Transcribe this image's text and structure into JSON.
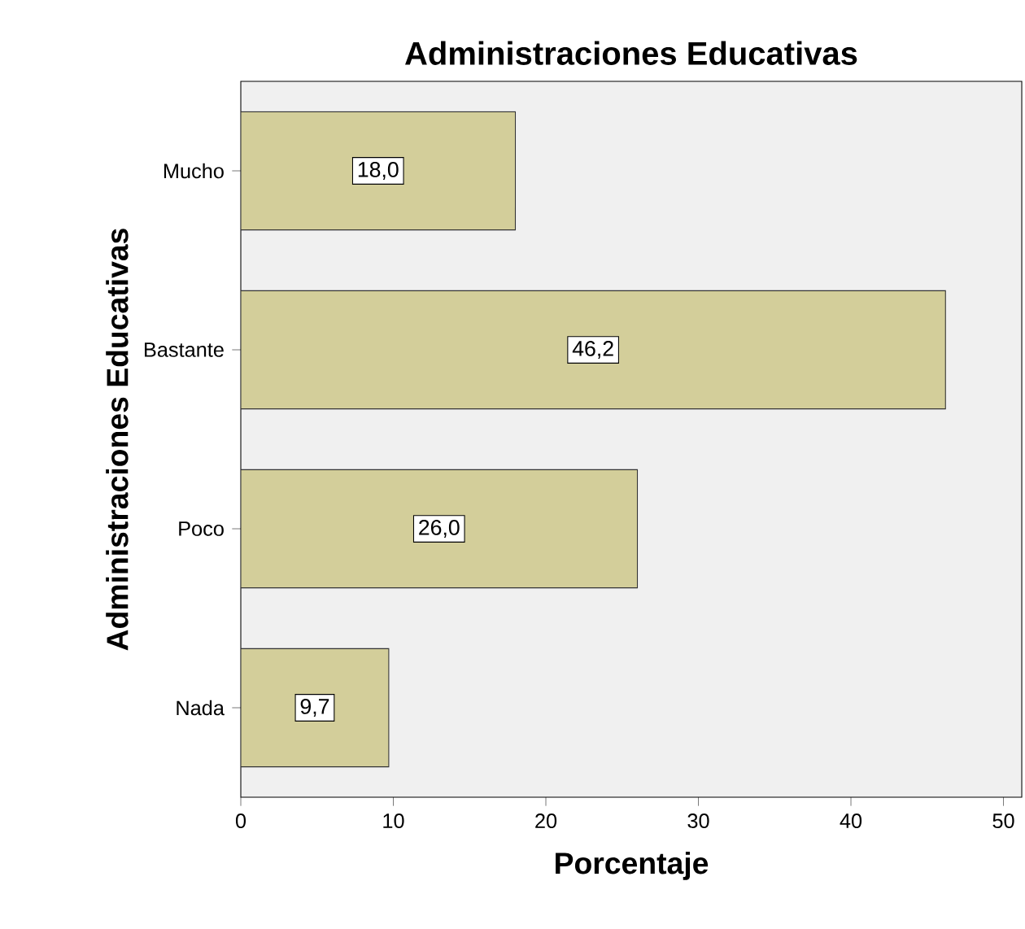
{
  "chart_data": {
    "type": "bar",
    "orientation": "horizontal",
    "title": "Administraciones Educativas",
    "xlabel": "Porcentaje",
    "ylabel": "Administraciones Educativas",
    "categories": [
      "Mucho",
      "Bastante",
      "Poco",
      "Nada"
    ],
    "values": [
      18.0,
      46.2,
      26.0,
      9.7
    ],
    "value_labels": [
      "18,0",
      "46,2",
      "26,0",
      "9,7"
    ],
    "color": "#d3ce9a",
    "xlim": [
      0,
      51.2
    ],
    "xticks": [
      0,
      10,
      20,
      30,
      40,
      50
    ],
    "grid": false
  }
}
